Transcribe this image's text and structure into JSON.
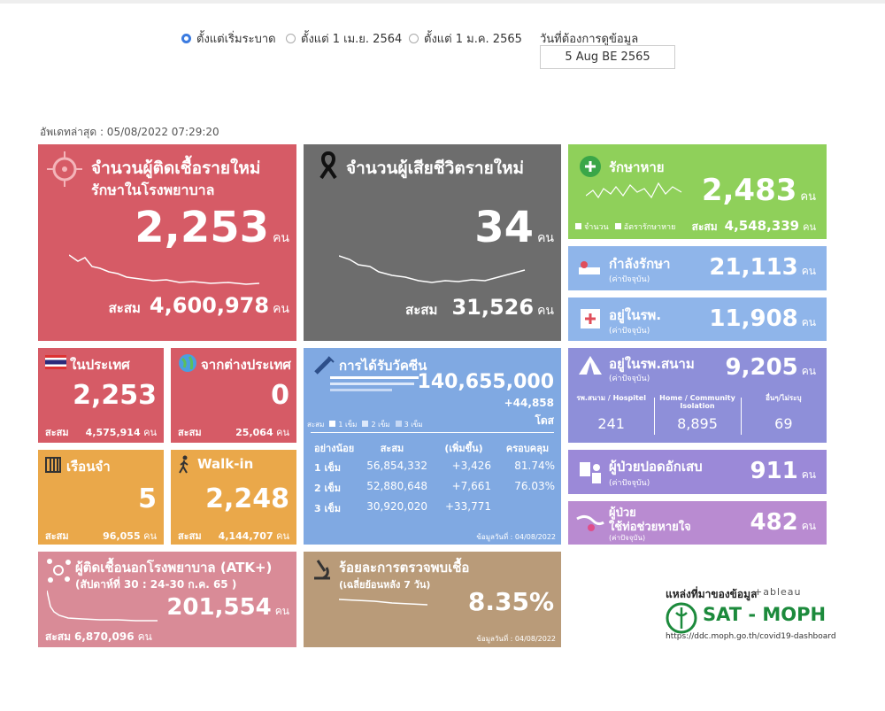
{
  "filters": {
    "options": [
      "ตั้งแต่เริ่มระบาด",
      "ตั้งแต่ 1 เม.ย. 2564",
      "ตั้งแต่ 1 ม.ค. 2565"
    ],
    "selected": 0,
    "date_label": "วันที่ต้องการดูข้อมูล",
    "date_value": "5 Aug BE 2565"
  },
  "updated": "อัพเดทล่าสุด : 05/08/2022 07:29:20",
  "new_cases": {
    "title": "จำนวนผู้ติดเชื้อรายใหม่",
    "subtitle": "รักษาในโรงพยาบาล",
    "value": "2,253",
    "unit": "คน",
    "cum_label": "สะสม",
    "cum_value": "4,600,978",
    "cum_unit": "คน"
  },
  "deaths": {
    "title": "จำนวนผู้เสียชีวิตรายใหม่",
    "value": "34",
    "unit": "คน",
    "cum_label": "สะสม",
    "cum_value": "31,526",
    "cum_unit": "คน"
  },
  "recovered": {
    "title": "รักษาหาย",
    "value": "2,483",
    "unit": "คน",
    "legend": [
      "จำนวน",
      "อัตรารักษาหาย"
    ],
    "cum_label": "สะสม",
    "cum_value": "4,548,339",
    "cum_unit": "คน"
  },
  "treating": {
    "title": "กำลังรักษา",
    "note": "(ค่าปัจจุบัน)",
    "value": "21,113",
    "unit": "คน"
  },
  "in_hospital": {
    "title": "อยู่ในรพ.",
    "note": "(ค่าปัจจุบัน)",
    "value": "11,908",
    "unit": "คน"
  },
  "domestic": {
    "title": "ในประเทศ",
    "value": "2,253",
    "cum_label": "สะสม",
    "cum_value": "4,575,914",
    "cum_unit": "คน"
  },
  "abroad": {
    "title": "จากต่างประเทศ",
    "value": "0",
    "cum_label": "สะสม",
    "cum_value": "25,064",
    "cum_unit": "คน"
  },
  "prison": {
    "title": "เรือนจำ",
    "value": "5",
    "cum_label": "สะสม",
    "cum_value": "96,055",
    "cum_unit": "คน"
  },
  "walkin": {
    "title": "Walk-in",
    "value": "2,248",
    "cum_label": "สะสม",
    "cum_value": "4,144,707",
    "cum_unit": "คน"
  },
  "vaccine": {
    "title": "การได้รับวัคซีน",
    "value": "140,655,000",
    "increase": "+44,858",
    "unit": "โดส",
    "legend": [
      "สะสม",
      "1 เข็ม",
      "2 เข็ม",
      "3 เข็ม"
    ],
    "table": {
      "header": [
        "อย่างน้อย",
        "สะสม",
        "(เพิ่มขึ้น)",
        "ครอบคลุม"
      ],
      "rows": [
        [
          "1 เข็ม",
          "56,854,332",
          "+3,426",
          "81.74%"
        ],
        [
          "2 เข็ม",
          "52,880,648",
          "+7,661",
          "76.03%"
        ],
        [
          "3 เข็ม",
          "30,920,020",
          "+33,771"
        ]
      ]
    },
    "footer": "ข้อมูลวันที่ : 04/08/2022"
  },
  "field_hospital": {
    "title": "อยู่ในรพ.สนาม",
    "note": "(ค่าปัจจุบัน)",
    "value": "9,205",
    "unit": "คน",
    "breakdown": [
      {
        "label": "รพ.สนาม / Hospitel",
        "value": "241"
      },
      {
        "label": "Home / Community Isolation",
        "value": "8,895"
      },
      {
        "label": "อื่นๆ/ไม่ระบุ",
        "value": "69"
      }
    ]
  },
  "pneumonia": {
    "title": "ผู้ป่วยปอดอักเสบ",
    "note": "(ค่าปัจจุบัน)",
    "value": "911",
    "unit": "คน"
  },
  "ventilator": {
    "title": "ผู้ป่วย",
    "title2": "ใช้ท่อช่วยหายใจ",
    "note": "(ค่าปัจจุบัน)",
    "value": "482",
    "unit": "คน"
  },
  "atk": {
    "title": "ผู้ติดเชื้อนอกโรงพยาบาล (ATK+)",
    "subtitle": "(สัปดาห์ที่ 30 : 24-30 ก.ค. 65 )",
    "value": "201,554",
    "unit": "คน",
    "cum_label": "สะสม",
    "cum_value": "6,870,096",
    "cum_unit": "คน"
  },
  "positivity": {
    "title": "ร้อยละการตรวจพบเชื้อ",
    "subtitle": "(เฉลี่ยย้อนหลัง 7 วัน)",
    "value": "8.35%",
    "footer": "ข้อมูลวันที่ : 04/08/2022"
  },
  "source": {
    "label": "แหล่งที่มาของข้อมูล",
    "tool": "+ableau",
    "org": "SAT - MOPH",
    "url": "https://ddc.moph.go.th/covid19-dashboard"
  }
}
